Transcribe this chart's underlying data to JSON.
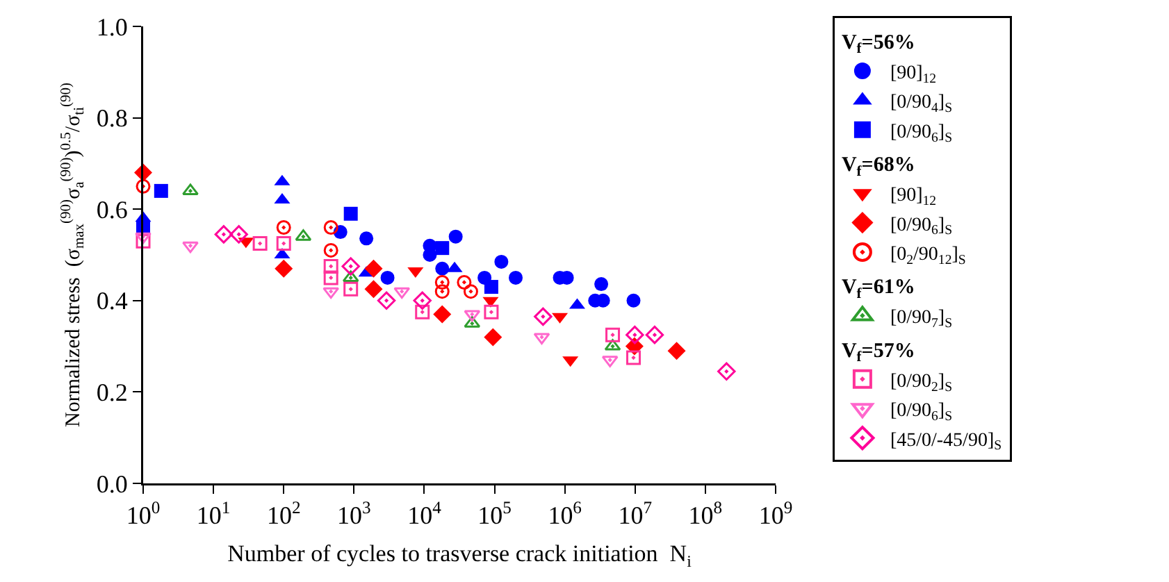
{
  "chart_data": {
    "type": "scatter",
    "xlabel": "Number of cycles to trasverse crack initiation  N$_{i}$",
    "ylabel": "Normalized stress  (σ$_{max}$$^{(90)}$σ$_{a}$$^{(90)}$)$^{0.5}$/σ$_{ti}$$^{(90)}$",
    "log": "x",
    "xlim": [
      1,
      1000000000
    ],
    "ylim": [
      0,
      1
    ],
    "xticks": [
      {
        "value": 1,
        "label": "10$^{0}$"
      },
      {
        "value": 10,
        "label": "10$^{1}$"
      },
      {
        "value": 100,
        "label": "10$^{2}$"
      },
      {
        "value": 1000,
        "label": "10$^{3}$"
      },
      {
        "value": 10000,
        "label": "10$^{4}$"
      },
      {
        "value": 100000,
        "label": "10$^{5}$"
      },
      {
        "value": 1000000,
        "label": "10$^{6}$"
      },
      {
        "value": 10000000,
        "label": "10$^{7}$"
      },
      {
        "value": 100000000,
        "label": "10$^{8}$"
      },
      {
        "value": 1000000000,
        "label": "10$^{9}$"
      }
    ],
    "yticks": [
      {
        "value": 0,
        "label": "0.0"
      },
      {
        "value": 0.2,
        "label": "0.2"
      },
      {
        "value": 0.4,
        "label": "0.4"
      },
      {
        "value": 0.6,
        "label": "0.6"
      },
      {
        "value": 0.8,
        "label": "0.8"
      },
      {
        "value": 1,
        "label": "1.0"
      }
    ],
    "grid": false,
    "legend": "right",
    "annotations": [
      "V$_{f}$=56%",
      "V$_{f}$=68%",
      "V$_{f}$=61%",
      "V$_{f}$=57%"
    ],
    "series": [
      {
        "name": "[90]$_{12}$",
        "color": "#0000ff",
        "marker": "circle",
        "x": [
          640,
          1500,
          3000,
          12000,
          12000,
          18000,
          28000,
          72000,
          125000,
          200000,
          850000,
          1070000,
          3300000,
          2700000,
          3500000,
          9500000
        ],
        "values": [
          0.55,
          0.536,
          0.45,
          0.52,
          0.5,
          0.47,
          0.54,
          0.45,
          0.485,
          0.45,
          0.45,
          0.45,
          0.436,
          0.4,
          0.4,
          0.4
        ]
      },
      {
        "name": "[0/90$_{4}$]$_{S}$",
        "color": "#0000ff",
        "marker": "triangle-up",
        "x": [
          1,
          95,
          95,
          95,
          1500,
          27000,
          1500000
        ],
        "values": [
          0.58,
          0.66,
          0.62,
          0.5,
          0.46,
          0.47,
          0.39
        ]
      },
      {
        "name": "[0/90$_{6}$]$_{S}$",
        "color": "#0000ff",
        "marker": "square",
        "x": [
          1,
          1.8,
          900,
          18000,
          90000
        ],
        "values": [
          0.56,
          0.64,
          0.59,
          0.515,
          0.43
        ]
      },
      {
        "name": "[90]$_{12}$",
        "color": "#ff0000",
        "marker": "triangle-down",
        "x": [
          29,
          7500,
          88000,
          850000,
          1200000
        ],
        "values": [
          0.53,
          0.465,
          0.4,
          0.365,
          0.27
        ]
      },
      {
        "name": "[0/90$_{6}$]$_{S}$",
        "color": "#ff0000",
        "marker": "diamond",
        "x": [
          1,
          100,
          1900,
          1900,
          18000,
          95000,
          9800000,
          39000000
        ],
        "values": [
          0.68,
          0.47,
          0.47,
          0.425,
          0.37,
          0.32,
          0.3,
          0.29
        ]
      },
      {
        "name": "[0$_{2}$/90$_{12}$]$_{S}$",
        "color": "#ff0000",
        "marker": "circle-open-dot",
        "x": [
          1,
          100,
          470,
          470,
          18000,
          18000,
          37000,
          46000
        ],
        "values": [
          0.65,
          0.56,
          0.56,
          0.51,
          0.44,
          0.42,
          0.44,
          0.42
        ]
      },
      {
        "name": "[0/90$_{7}$]$_{S}$",
        "color": "#2e9e2e",
        "marker": "triangle-up-open-dot",
        "x": [
          4.7,
          190,
          900,
          48000,
          4800000
        ],
        "values": [
          0.64,
          0.54,
          0.45,
          0.35,
          0.3
        ]
      },
      {
        "name": "[0/90$_{2}$]$_{S}$",
        "color": "#ff3399",
        "marker": "square-open-dot",
        "x": [
          1,
          46,
          100,
          470,
          470,
          900,
          9400,
          90000,
          4800000,
          9500000
        ],
        "values": [
          0.53,
          0.525,
          0.525,
          0.475,
          0.45,
          0.425,
          0.375,
          0.375,
          0.325,
          0.275
        ]
      },
      {
        "name": "[0/90$_{6}$]$_{S}$",
        "color": "#ff66cc",
        "marker": "triangle-down-open-dot",
        "x": [
          1,
          4.7,
          470,
          4800,
          48000,
          470000,
          4400000
        ],
        "values": [
          0.54,
          0.52,
          0.42,
          0.42,
          0.37,
          0.32,
          0.27
        ]
      },
      {
        "name": "[45/0/-45/90]$_{S}$",
        "color": "#ff0099",
        "marker": "diamond-open-dot",
        "x": [
          14,
          23,
          900,
          2900,
          9400,
          490000,
          9900000,
          19000000,
          200000000
        ],
        "values": [
          0.545,
          0.545,
          0.475,
          0.4,
          0.4,
          0.365,
          0.325,
          0.325,
          0.245
        ]
      }
    ]
  }
}
